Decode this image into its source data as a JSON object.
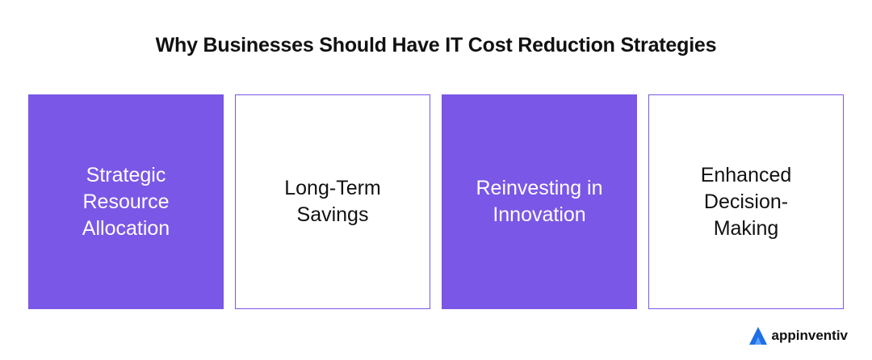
{
  "title": "Why Businesses Should Have IT Cost Reduction Strategies",
  "cards": [
    {
      "label": "Strategic Resource Allocation",
      "style": "filled"
    },
    {
      "label": "Long-Term Savings",
      "style": "outline"
    },
    {
      "label": "Reinvesting in Innovation",
      "style": "filled"
    },
    {
      "label": "Enhanced Decision-Making",
      "style": "outline"
    }
  ],
  "brand": {
    "name": "appinventiv",
    "logo_icon": "appinventiv-logo-icon"
  },
  "colors": {
    "accent": "#7a57e6",
    "logo_blue": "#1f6fe5",
    "text": "#111111"
  }
}
